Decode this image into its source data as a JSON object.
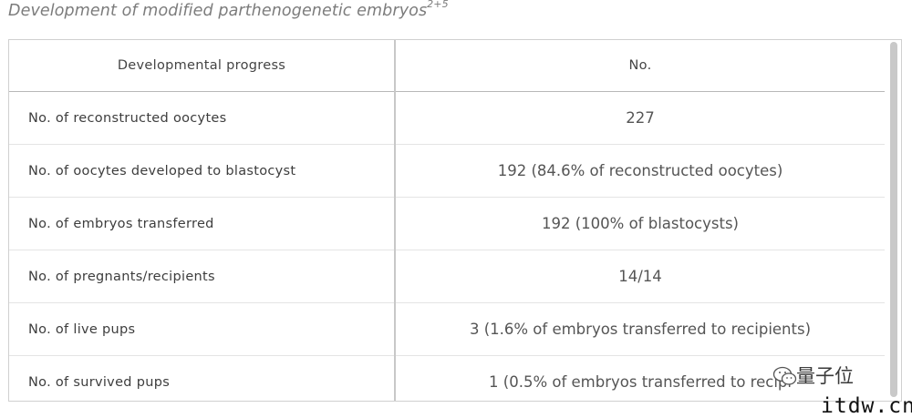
{
  "title": {
    "text": "Development of modified parthenogenetic embryos",
    "superscript": "2+5"
  },
  "table": {
    "headers": [
      "Developmental progress",
      "No."
    ],
    "rows": [
      {
        "label": "No. of reconstructed oocytes",
        "value": "227"
      },
      {
        "label": "No. of oocytes developed to blastocyst",
        "value": "192 (84.6% of reconstructed oocytes)"
      },
      {
        "label": "No. of embryos transferred",
        "value": "192 (100% of blastocysts)"
      },
      {
        "label": "No. of pregnants/recipients",
        "value": "14/14"
      },
      {
        "label": "No. of live pups",
        "value": "3 (1.6% of embryos transferred to recipients)"
      },
      {
        "label": "No. of survived pups",
        "value": "1 (0.5% of embryos transferred to recipi"
      }
    ]
  },
  "watermark": {
    "text": "量子位",
    "domain": "itdw.cn",
    "icon": "wechat-icon"
  }
}
